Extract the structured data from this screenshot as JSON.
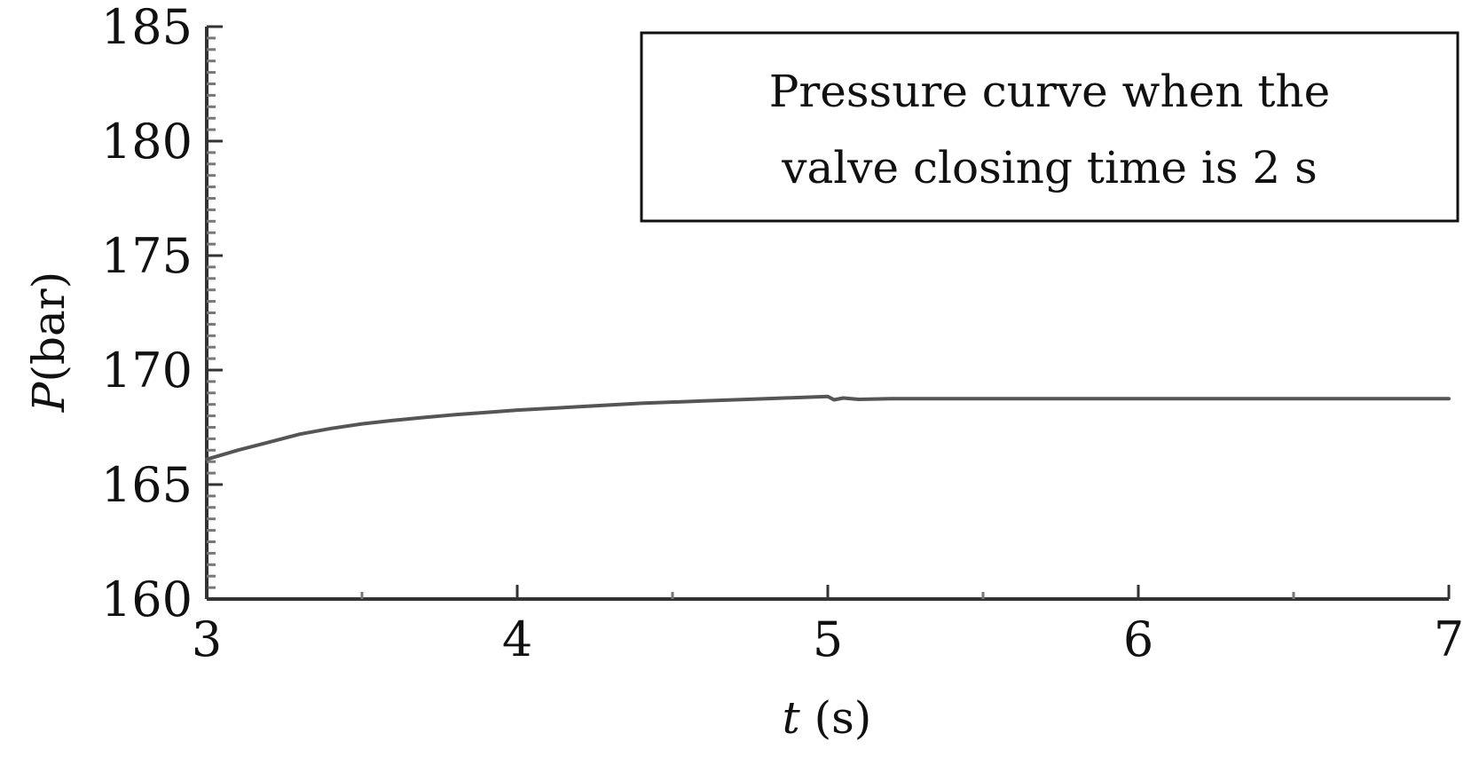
{
  "chart_data": {
    "type": "line",
    "annotation_lines": [
      "Pressure curve when the",
      "valve closing time is 2 s"
    ],
    "xlabel_italic": "t",
    "xlabel_unit": " (s)",
    "ylabel_italic": "P",
    "ylabel_unit": "(bar)",
    "xlim": [
      3,
      7
    ],
    "ylim": [
      160,
      185
    ],
    "x_ticks": [
      3,
      4,
      5,
      6,
      7
    ],
    "y_ticks": [
      160,
      165,
      170,
      175,
      180,
      185
    ],
    "x_tick_labels": [
      "3",
      "4",
      "5",
      "6",
      "7"
    ],
    "y_tick_labels": [
      "160",
      "165",
      "170",
      "175",
      "180",
      "185"
    ],
    "y_minor_step": 0.5,
    "x_minor_step": 0.5,
    "line_color": "#555555",
    "axis_color": "#333333",
    "grid": false,
    "series": [
      {
        "x": [
          3.0,
          3.1,
          3.2,
          3.3,
          3.4,
          3.5,
          3.6,
          3.7,
          3.8,
          3.9,
          4.0,
          4.2,
          4.4,
          4.6,
          4.8,
          5.0,
          5.02,
          5.05,
          5.1,
          5.2,
          5.4,
          5.6,
          5.8,
          6.0,
          6.2,
          6.4,
          6.6,
          6.8,
          7.0
        ],
        "y": [
          166.1,
          166.5,
          166.85,
          167.2,
          167.45,
          167.65,
          167.8,
          167.93,
          168.05,
          168.15,
          168.25,
          168.4,
          168.55,
          168.65,
          168.75,
          168.85,
          168.7,
          168.78,
          168.72,
          168.75,
          168.75,
          168.75,
          168.75,
          168.75,
          168.75,
          168.75,
          168.75,
          168.75,
          168.75
        ]
      }
    ]
  }
}
